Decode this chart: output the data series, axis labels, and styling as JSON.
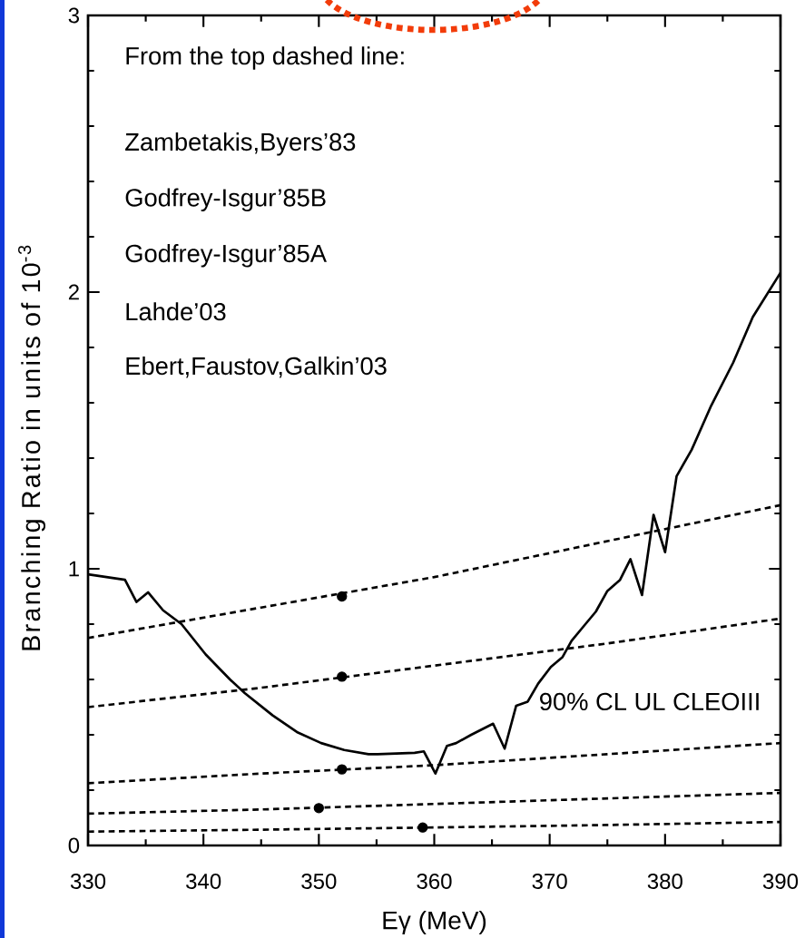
{
  "chart_data": {
    "type": "line",
    "xlabel": "Eγ (MeV)",
    "ylabel": "Branching Ratio in units of 10$^{-3}$",
    "annotations": [
      "From the top dashed line:",
      "Zambetakis,Byers’83",
      "Godfrey-Isgur’85B",
      "Godfrey-Isgur’85A",
      "Lahde’03",
      "Ebert,Faustov,Galkin’03",
      {
        "text": "90% CL UL CLEOIII",
        "x": 368.1,
        "y": 0.52
      }
    ],
    "xlim": [
      330,
      390
    ],
    "ylim": [
      0,
      3
    ],
    "xticks": [
      330,
      {
        "value": 335,
        "label": null
      },
      340,
      {
        "value": 345,
        "label": null
      },
      350,
      {
        "value": 355,
        "label": null
      },
      360,
      {
        "value": 365,
        "label": null
      },
      370,
      {
        "value": 375,
        "label": null
      },
      380,
      {
        "value": 385,
        "label": null
      },
      390
    ],
    "yticks": [
      0,
      {
        "value": 0.2,
        "label": null
      },
      {
        "value": 0.4,
        "label": null
      },
      {
        "value": 0.6,
        "label": null
      },
      {
        "value": 0.8,
        "label": null
      },
      1,
      {
        "value": 1.2,
        "label": null
      },
      {
        "value": 1.4,
        "label": null
      },
      {
        "value": 1.6,
        "label": null
      },
      {
        "value": 1.8,
        "label": null
      },
      2,
      {
        "value": 2.2,
        "label": null
      },
      {
        "value": 2.4,
        "label": null
      },
      {
        "value": 2.6,
        "label": null
      },
      {
        "value": 2.8,
        "label": null
      },
      3
    ],
    "series": [
      {
        "color": "#000000",
        "x": [
          330,
          333.2,
          334.2,
          335.2,
          336.5,
          338.1,
          340.2,
          342.3,
          343.6,
          346.0,
          348.1,
          350.2,
          352.2,
          354.3,
          355.1,
          358.3,
          359.1,
          360.1,
          361.1,
          361.9,
          363.2,
          365.1,
          366.1,
          367.1,
          368.1,
          369.0,
          370.1,
          371.1,
          371.9,
          373.0,
          374.0,
          375.0,
          376.1,
          377.0,
          378.0,
          379.0,
          380.0,
          381.0,
          382.3,
          384.0,
          385.9,
          387.6,
          390
        ],
        "values": [
          0.98,
          0.96,
          0.88,
          0.915,
          0.85,
          0.8,
          0.69,
          0.6,
          0.55,
          0.47,
          0.41,
          0.37,
          0.345,
          0.33,
          0.33,
          0.335,
          0.34,
          0.26,
          0.36,
          0.37,
          0.4,
          0.44,
          0.35,
          0.505,
          0.52,
          0.585,
          0.645,
          0.68,
          0.74,
          0.795,
          0.845,
          0.92,
          0.96,
          1.035,
          0.905,
          1.195,
          1.06,
          1.335,
          1.43,
          1.59,
          1.745,
          1.91,
          2.07
        ]
      },
      {
        "color": "#000000",
        "line_style": "dashed",
        "x": [
          330,
          345,
          360,
          375,
          390
        ],
        "values": [
          0.75,
          0.86,
          0.97,
          1.1,
          1.23
        ]
      },
      {
        "color": "#000000",
        "line_style": "dashed",
        "x": [
          330,
          345,
          360,
          375,
          390
        ],
        "values": [
          0.5,
          0.57,
          0.65,
          0.73,
          0.82
        ]
      },
      {
        "color": "#000000",
        "line_style": "dashed",
        "x": [
          330,
          345,
          360,
          375,
          390
        ],
        "values": [
          0.225,
          0.26,
          0.29,
          0.33,
          0.37
        ]
      },
      {
        "color": "#000000",
        "line_style": "dashed",
        "x": [
          330,
          345,
          360,
          375,
          390
        ],
        "values": [
          0.115,
          0.13,
          0.15,
          0.17,
          0.19
        ]
      },
      {
        "color": "#000000",
        "line_style": "dashed",
        "x": [
          330,
          345,
          360,
          375,
          390
        ],
        "values": [
          0.05,
          0.057,
          0.065,
          0.074,
          0.085
        ]
      },
      {
        "type": "scatter",
        "color": "#000000",
        "marker": "circle",
        "x": [
          352,
          352,
          352,
          350,
          359
        ],
        "values": [
          0.9,
          0.61,
          0.275,
          0.135,
          0.065
        ]
      }
    ]
  }
}
